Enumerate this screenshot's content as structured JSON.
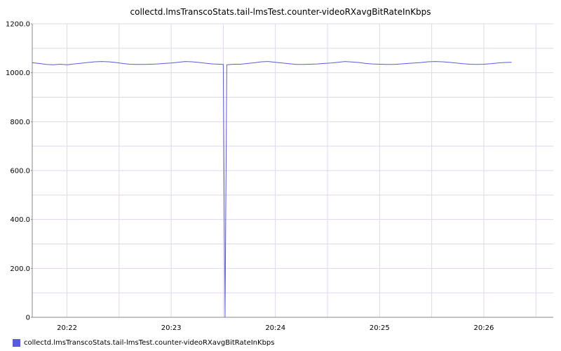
{
  "chart_data": {
    "type": "line",
    "title": "collectd.lmsTranscoStats.tail-lmsTest.counter-videoRXavgBitRateInKbps",
    "xlabel": "",
    "ylabel": "",
    "x_range_seconds": [
      0,
      300
    ],
    "x_ticks": [
      {
        "t": 20,
        "label": "20:22"
      },
      {
        "t": 80,
        "label": "20:23"
      },
      {
        "t": 140,
        "label": "20:24"
      },
      {
        "t": 200,
        "label": "20:25"
      },
      {
        "t": 260,
        "label": "20:26"
      }
    ],
    "ylim": [
      0,
      1200
    ],
    "y_ticks": [
      {
        "v": 0,
        "label": "0"
      },
      {
        "v": 200,
        "label": "200.0"
      },
      {
        "v": 400,
        "label": "400.0"
      },
      {
        "v": 600,
        "label": "600.0"
      },
      {
        "v": 800,
        "label": "800.0"
      },
      {
        "v": 1000,
        "label": "1000.0"
      },
      {
        "v": 1200,
        "label": "1200.0"
      }
    ],
    "grid": true,
    "legend_position": "bottom-left",
    "series": [
      {
        "name": "collectd.lmsTranscoStats.tail-lmsTest.counter-videoRXavgBitRateInKbps",
        "color": "#5b5be0",
        "points": [
          [
            0,
            1041
          ],
          [
            4,
            1038
          ],
          [
            8,
            1034
          ],
          [
            12,
            1033
          ],
          [
            16,
            1035
          ],
          [
            20,
            1033
          ],
          [
            24,
            1036
          ],
          [
            28,
            1039
          ],
          [
            32,
            1042
          ],
          [
            36,
            1045
          ],
          [
            40,
            1046
          ],
          [
            44,
            1045
          ],
          [
            48,
            1042
          ],
          [
            52,
            1038
          ],
          [
            56,
            1035
          ],
          [
            60,
            1034
          ],
          [
            64,
            1034
          ],
          [
            68,
            1035
          ],
          [
            72,
            1036
          ],
          [
            76,
            1038
          ],
          [
            80,
            1040
          ],
          [
            84,
            1043
          ],
          [
            88,
            1046
          ],
          [
            92,
            1045
          ],
          [
            96,
            1042
          ],
          [
            100,
            1039
          ],
          [
            104,
            1036
          ],
          [
            108,
            1035
          ],
          [
            110,
            1034
          ],
          [
            111,
            0
          ],
          [
            112,
            1033
          ],
          [
            116,
            1035
          ],
          [
            120,
            1035
          ],
          [
            124,
            1038
          ],
          [
            128,
            1041
          ],
          [
            132,
            1045
          ],
          [
            136,
            1046
          ],
          [
            140,
            1043
          ],
          [
            144,
            1040
          ],
          [
            148,
            1037
          ],
          [
            152,
            1034
          ],
          [
            156,
            1034
          ],
          [
            160,
            1035
          ],
          [
            164,
            1036
          ],
          [
            168,
            1038
          ],
          [
            172,
            1040
          ],
          [
            176,
            1043
          ],
          [
            180,
            1046
          ],
          [
            184,
            1044
          ],
          [
            188,
            1042
          ],
          [
            192,
            1038
          ],
          [
            196,
            1036
          ],
          [
            200,
            1035
          ],
          [
            204,
            1034
          ],
          [
            208,
            1034
          ],
          [
            212,
            1036
          ],
          [
            216,
            1038
          ],
          [
            220,
            1040
          ],
          [
            224,
            1042
          ],
          [
            228,
            1045
          ],
          [
            232,
            1046
          ],
          [
            236,
            1045
          ],
          [
            240,
            1043
          ],
          [
            244,
            1040
          ],
          [
            248,
            1037
          ],
          [
            252,
            1035
          ],
          [
            256,
            1034
          ],
          [
            260,
            1035
          ],
          [
            264,
            1037
          ],
          [
            268,
            1040
          ],
          [
            272,
            1042
          ],
          [
            276,
            1043
          ]
        ]
      }
    ]
  },
  "colors": {
    "grid": "#e1d7ea",
    "axis": "#8a8a8a",
    "tick_text": "#000000"
  }
}
